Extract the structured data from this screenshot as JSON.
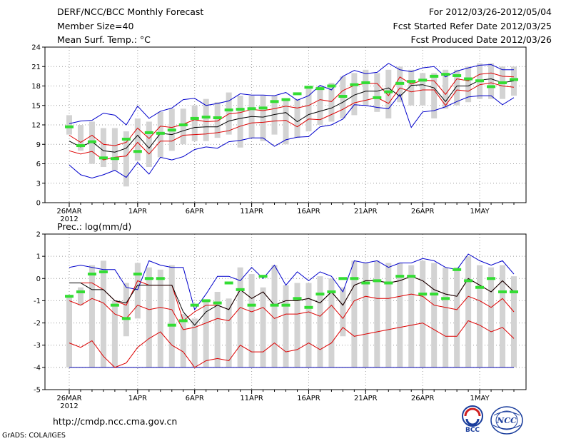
{
  "header": {
    "title": "DERF/NCC/BCC Monthly Forecast",
    "member_size": "Member Size=40",
    "variable": "Mean Surf. Temp.: °C",
    "forecast_period": "For 2012/03/26-2012/05/04",
    "started_refer": "Fcst Started Refer Date 2012/03/25",
    "produced": "Fcst Produced Date 2012/03/26"
  },
  "footer": {
    "url": "http://cmdp.ncc.cma.gov.cn",
    "grads": "GrADS: COLA/IGES",
    "logo1_text": "BCC",
    "logo2_text": "NCC"
  },
  "colors": {
    "box": "#d3d3d3",
    "mean": "#000000",
    "spread": "#dd0000",
    "envelope": "#0000cc",
    "marker": "#33dd33",
    "grid": "#999999",
    "floor": "#0000aa"
  },
  "chart_data": [
    {
      "type": "line",
      "title": "Mean Surf. Temp.: °C",
      "x_start_label": "26MAR",
      "x_year_label": "2012",
      "x_ticks": [
        {
          "day": 1,
          "label": "26MAR"
        },
        {
          "day": 7,
          "label": "1APR"
        },
        {
          "day": 12,
          "label": "6APR"
        },
        {
          "day": 17,
          "label": "11APR"
        },
        {
          "day": 22,
          "label": "16APR"
        },
        {
          "day": 27,
          "label": "21APR"
        },
        {
          "day": 32,
          "label": "26APR"
        },
        {
          "day": 37,
          "label": "1MAY"
        }
      ],
      "days": 40,
      "ylim": [
        0,
        24
      ],
      "yticks": [
        0,
        3,
        6,
        9,
        12,
        15,
        18,
        21,
        24
      ],
      "grid": true,
      "series": [
        {
          "name": "ensemble max",
          "color": "envelope",
          "values": [
            12.2,
            12.6,
            12.7,
            13.8,
            13.5,
            12.0,
            14.9,
            13.0,
            14.1,
            14.6,
            15.9,
            16.1,
            15.0,
            15.3,
            15.7,
            16.8,
            16.6,
            16.6,
            16.5,
            17.0,
            15.8,
            16.5,
            18.1,
            17.4,
            19.5,
            20.4,
            19.9,
            20.1,
            21.5,
            20.5,
            20.2,
            20.8,
            21.0,
            19.4,
            20.3,
            20.8,
            21.2,
            21.3,
            20.5,
            20.5
          ]
        },
        {
          "name": "upper percentile",
          "color": "spread",
          "values": [
            10.4,
            9.3,
            10.4,
            9.0,
            8.8,
            9.3,
            11.5,
            9.9,
            11.8,
            11.6,
            12.1,
            12.8,
            12.5,
            12.6,
            13.7,
            13.9,
            14.4,
            14.2,
            14.5,
            14.9,
            14.6,
            15.0,
            15.9,
            15.6,
            17.3,
            18.1,
            18.4,
            18.4,
            16.5,
            19.4,
            18.3,
            18.9,
            18.8,
            16.7,
            19.1,
            18.8,
            19.8,
            20.0,
            19.5,
            19.4
          ]
        },
        {
          "name": "ensemble mean",
          "color": "mean",
          "values": [
            9.5,
            8.6,
            9.4,
            8.0,
            7.8,
            8.4,
            10.4,
            8.4,
            10.7,
            10.5,
            11.1,
            11.6,
            11.7,
            11.7,
            12.6,
            13.0,
            13.3,
            13.2,
            13.6,
            13.9,
            12.5,
            13.6,
            14.1,
            14.6,
            15.5,
            16.6,
            17.2,
            17.2,
            17.7,
            16.4,
            18.1,
            18.2,
            17.7,
            15.6,
            18.0,
            18.0,
            18.9,
            19.1,
            18.5,
            18.8
          ]
        },
        {
          "name": "lower percentile",
          "color": "spread",
          "values": [
            8.0,
            7.5,
            7.9,
            6.6,
            7.0,
            7.2,
            9.3,
            7.5,
            9.5,
            9.5,
            10.4,
            10.5,
            10.6,
            10.8,
            11.1,
            11.8,
            12.3,
            12.4,
            12.6,
            12.7,
            11.7,
            12.9,
            12.8,
            13.6,
            14.4,
            15.4,
            15.8,
            16.2,
            15.3,
            17.7,
            17.1,
            17.4,
            17.4,
            15.0,
            17.4,
            17.2,
            18.2,
            18.5,
            18.0,
            17.8
          ]
        },
        {
          "name": "ensemble min",
          "color": "envelope",
          "values": [
            5.8,
            4.3,
            3.8,
            4.3,
            5.0,
            3.9,
            6.2,
            4.4,
            7.0,
            6.6,
            7.1,
            8.2,
            8.6,
            8.4,
            9.4,
            9.6,
            10.0,
            10.0,
            8.7,
            9.7,
            10.1,
            10.2,
            11.7,
            12.0,
            12.9,
            15.1,
            15.0,
            14.7,
            14.5,
            16.7,
            11.6,
            14.0,
            14.2,
            14.8,
            15.6,
            16.3,
            16.5,
            16.5,
            15.1,
            16.2
          ]
        }
      ],
      "box_ranges": [
        [
          10.5,
          13.5
        ],
        [
          8.0,
          12.0
        ],
        [
          6.0,
          12.5
        ],
        [
          5.5,
          11.5
        ],
        [
          5.0,
          11.5
        ],
        [
          2.5,
          11.0
        ],
        [
          6.5,
          13.0
        ],
        [
          5.5,
          12.5
        ],
        [
          7.0,
          14.0
        ],
        [
          8.0,
          14.5
        ],
        [
          9.0,
          14.5
        ],
        [
          9.5,
          15.0
        ],
        [
          9.5,
          16.0
        ],
        [
          10.0,
          15.5
        ],
        [
          10.5,
          17.0
        ],
        [
          8.5,
          16.5
        ],
        [
          10.0,
          16.5
        ],
        [
          9.5,
          16.5
        ],
        [
          10.5,
          16.5
        ],
        [
          9.0,
          16.0
        ],
        [
          10.0,
          16.0
        ],
        [
          11.0,
          18.0
        ],
        [
          12.0,
          18.0
        ],
        [
          12.5,
          18.5
        ],
        [
          13.0,
          19.5
        ],
        [
          13.5,
          20.0
        ],
        [
          15.0,
          20.5
        ],
        [
          14.0,
          20.0
        ],
        [
          13.0,
          20.5
        ],
        [
          15.5,
          21.0
        ],
        [
          15.0,
          20.5
        ],
        [
          15.0,
          20.0
        ],
        [
          13.0,
          20.0
        ],
        [
          14.5,
          20.5
        ],
        [
          15.0,
          20.5
        ],
        [
          15.5,
          21.0
        ],
        [
          16.0,
          21.5
        ],
        [
          16.0,
          21.5
        ],
        [
          16.0,
          21.0
        ],
        [
          16.5,
          21.0
        ]
      ],
      "markers": [
        11.7,
        8.8,
        9.4,
        6.9,
        6.8,
        9.8,
        7.9,
        10.8,
        10.7,
        11.2,
        12.0,
        13.0,
        13.2,
        13.1,
        14.3,
        14.4,
        14.5,
        14.6,
        15.6,
        15.9,
        16.8,
        17.8,
        17.6,
        18.0,
        16.4,
        18.2,
        18.5,
        16.2,
        17.1,
        18.4,
        18.7,
        18.9,
        19.5,
        19.8,
        19.6,
        19.1,
        18.8,
        17.9,
        18.5,
        19.0
      ]
    },
    {
      "type": "line",
      "title": "Prec.: log(mm/d)",
      "x_start_label": "26MAR",
      "x_year_label": "2012",
      "x_ticks": [
        {
          "day": 1,
          "label": "26MAR"
        },
        {
          "day": 7,
          "label": "1APR"
        },
        {
          "day": 12,
          "label": "6APR"
        },
        {
          "day": 17,
          "label": "11APR"
        },
        {
          "day": 22,
          "label": "16APR"
        },
        {
          "day": 27,
          "label": "21APR"
        },
        {
          "day": 32,
          "label": "26APR"
        },
        {
          "day": 37,
          "label": "1MAY"
        }
      ],
      "days": 40,
      "ylim": [
        -5,
        2
      ],
      "yticks": [
        -5,
        -4,
        -3,
        -2,
        -1,
        0,
        1,
        2
      ],
      "grid": true,
      "floor_value": -4,
      "series": [
        {
          "name": "ensemble max",
          "color": "envelope",
          "values": [
            0.5,
            0.6,
            0.5,
            0.4,
            0.4,
            -0.4,
            -0.5,
            0.8,
            0.6,
            0.5,
            0.5,
            -1.4,
            -0.7,
            0.1,
            0.1,
            -0.1,
            0.5,
            0.0,
            0.6,
            -0.3,
            0.3,
            -0.1,
            0.3,
            0.1,
            -0.6,
            0.8,
            0.7,
            0.8,
            0.5,
            0.7,
            0.7,
            0.9,
            0.8,
            0.5,
            0.4,
            1.1,
            0.8,
            0.6,
            0.8,
            0.2
          ]
        },
        {
          "name": "upper percentile",
          "color": "spread",
          "values": [
            -0.2,
            -0.2,
            -0.2,
            -0.5,
            -1.0,
            -1.2,
            -0.1,
            -0.3,
            -0.3,
            -0.3,
            -1.9,
            -1.5,
            -1.2,
            -1.2,
            -1.4,
            -0.5,
            -0.9,
            -0.6,
            -1.2,
            -1.0,
            -1.0,
            -0.9,
            -1.1,
            -0.6,
            -1.2,
            -0.3,
            -0.1,
            -0.1,
            -0.2,
            -0.1,
            0.1,
            -0.1,
            -0.5,
            -0.7,
            -0.8,
            0.0,
            -0.3,
            -0.6,
            -0.1,
            -0.6
          ]
        },
        {
          "name": "ensemble mean",
          "color": "mean",
          "values": [
            -0.2,
            -0.2,
            -0.5,
            -0.5,
            -1.0,
            -1.1,
            -0.3,
            -0.3,
            -0.3,
            -0.3,
            -1.5,
            -2.1,
            -1.5,
            -1.2,
            -1.4,
            -0.5,
            -0.9,
            -0.6,
            -1.2,
            -1.0,
            -1.0,
            -0.9,
            -1.1,
            -0.6,
            -1.2,
            -0.3,
            -0.1,
            -0.1,
            -0.2,
            -0.1,
            0.1,
            -0.1,
            -0.5,
            -0.7,
            -0.8,
            0.0,
            -0.3,
            -0.6,
            -0.1,
            -0.6
          ]
        },
        {
          "name": "lower percentile",
          "color": "spread",
          "values": [
            -1.0,
            -1.2,
            -0.9,
            -1.1,
            -1.6,
            -1.8,
            -1.2,
            -1.4,
            -1.3,
            -1.4,
            -2.3,
            -2.2,
            -2.0,
            -1.8,
            -1.9,
            -1.3,
            -1.5,
            -1.3,
            -1.8,
            -1.6,
            -1.6,
            -1.5,
            -1.7,
            -1.2,
            -1.8,
            -1.0,
            -0.8,
            -0.9,
            -0.9,
            -0.8,
            -0.7,
            -0.8,
            -1.2,
            -1.3,
            -1.4,
            -0.8,
            -1.0,
            -1.3,
            -0.9,
            -1.5
          ]
        },
        {
          "name": "ensemble min",
          "color": "spread",
          "values": [
            -2.9,
            -3.1,
            -2.8,
            -3.5,
            -4.0,
            -3.8,
            -3.1,
            -2.7,
            -2.4,
            -3.0,
            -3.3,
            -4.0,
            -3.7,
            -3.6,
            -3.7,
            -3.0,
            -3.3,
            -3.3,
            -2.9,
            -3.3,
            -3.2,
            -2.9,
            -3.2,
            -2.9,
            -2.2,
            -2.6,
            -2.5,
            -2.4,
            -2.3,
            -2.2,
            -2.1,
            -2.0,
            -2.3,
            -2.6,
            -2.6,
            -1.9,
            -2.1,
            -2.4,
            -2.2,
            -2.7
          ]
        }
      ],
      "box_ranges": [
        [
          -4.0,
          -0.8
        ],
        [
          -1.2,
          -0.4
        ],
        [
          -4.0,
          0.6
        ],
        [
          -4.0,
          0.8
        ],
        [
          -4.0,
          -1.0
        ],
        [
          -2.6,
          -0.2
        ],
        [
          -1.8,
          0.7
        ],
        [
          -4.0,
          0.5
        ],
        [
          -4.0,
          0.4
        ],
        [
          -4.0,
          0.6
        ],
        [
          -4.0,
          -1.6
        ],
        [
          -4.0,
          -1.8
        ],
        [
          -4.0,
          -1.0
        ],
        [
          -4.0,
          -0.6
        ],
        [
          -4.0,
          -0.9
        ],
        [
          -4.0,
          0.5
        ],
        [
          -4.0,
          0.2
        ],
        [
          -4.0,
          -0.4
        ],
        [
          -4.0,
          0.6
        ],
        [
          -4.0,
          -0.3
        ],
        [
          -4.0,
          -0.2
        ],
        [
          -4.0,
          -0.2
        ],
        [
          -4.0,
          0.1
        ],
        [
          -4.0,
          0.0
        ],
        [
          -2.6,
          -0.4
        ],
        [
          -4.0,
          0.8
        ],
        [
          -4.0,
          0.7
        ],
        [
          -4.0,
          0.8
        ],
        [
          -4.0,
          0.7
        ],
        [
          -4.0,
          0.7
        ],
        [
          -4.0,
          0.6
        ],
        [
          -4.0,
          0.8
        ],
        [
          -4.0,
          0.7
        ],
        [
          -4.0,
          0.5
        ],
        [
          -4.0,
          0.5
        ],
        [
          -4.0,
          1.0
        ],
        [
          -4.0,
          0.6
        ],
        [
          -4.0,
          0.5
        ],
        [
          -4.0,
          0.6
        ],
        [
          -4.0,
          0.1
        ]
      ],
      "markers": [
        -0.8,
        -0.6,
        0.2,
        0.3,
        -1.2,
        -1.8,
        0.2,
        0.0,
        0.0,
        -2.1,
        -1.9,
        -1.2,
        -1.0,
        -1.1,
        -0.2,
        -0.5,
        -1.2,
        0.1,
        -1.2,
        -1.2,
        -0.9,
        -1.3,
        -0.7,
        -0.6,
        0.0,
        0.0,
        -0.2,
        -0.1,
        -0.2,
        0.1,
        0.1,
        -0.7,
        -0.7,
        -0.9,
        0.4,
        -0.1,
        -0.4,
        0.0,
        -0.6,
        -0.6
      ]
    }
  ]
}
